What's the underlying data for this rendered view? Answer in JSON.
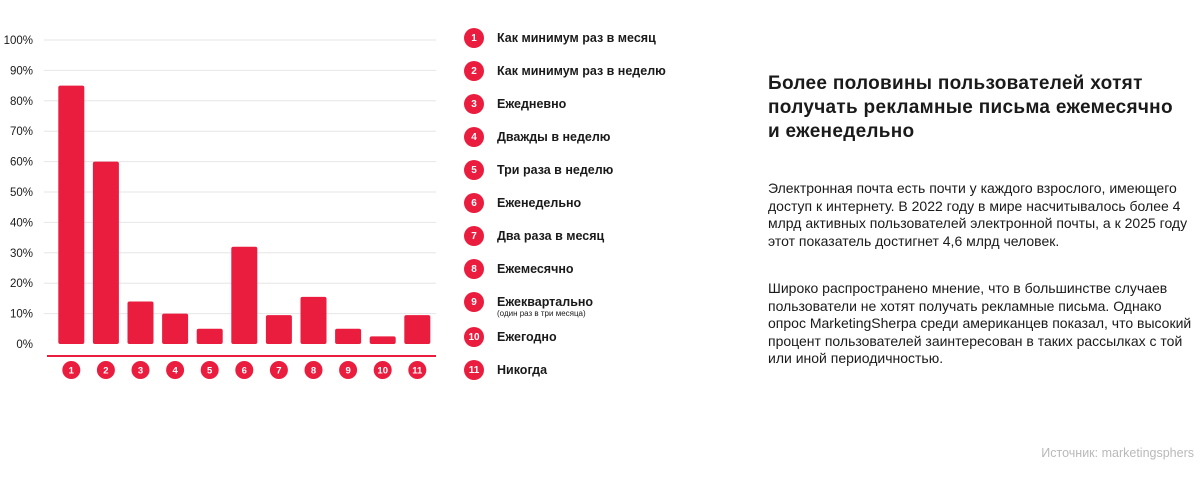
{
  "chart_data": {
    "type": "bar",
    "categories": [
      "1",
      "2",
      "3",
      "4",
      "5",
      "6",
      "7",
      "8",
      "9",
      "10",
      "11"
    ],
    "values": [
      85,
      60,
      14,
      10,
      5,
      32,
      9.5,
      15.5,
      5,
      2.5,
      9.5
    ],
    "ylim": [
      0,
      100
    ],
    "yticks": [
      "0%",
      "10%",
      "20%",
      "30%",
      "40%",
      "50%",
      "60%",
      "70%",
      "80%",
      "90%",
      "100%"
    ],
    "grid": true
  },
  "colors": {
    "accent": "#ea1d3f",
    "grid": "#e6e6e6",
    "source": "#b9b9b9"
  },
  "legend": [
    {
      "num": "1",
      "label": "Как минимум раз в месяц"
    },
    {
      "num": "2",
      "label": "Как минимум раз в неделю"
    },
    {
      "num": "3",
      "label": "Ежедневно"
    },
    {
      "num": "4",
      "label": "Дважды в неделю"
    },
    {
      "num": "5",
      "label": "Три раза в неделю"
    },
    {
      "num": "6",
      "label": "Еженедельно"
    },
    {
      "num": "7",
      "label": "Два раза в месяц"
    },
    {
      "num": "8",
      "label": "Ежемесячно"
    },
    {
      "num": "9",
      "label": "Ежеквартально",
      "note": "(один раз в три месяца)"
    },
    {
      "num": "10",
      "label": "Ежегодно"
    },
    {
      "num": "11",
      "label": "Никогда"
    }
  ],
  "headline": "Более половины пользователей хотят получать рекламные письма ежемесячно и еженедельно",
  "paragraphs": [
    "Электронная почта есть почти у каждого взрослого, имеющего доступ к интернету. В 2022 году в мире насчитывалось более 4 млрд активных пользователей электронной почты, а к 2025 году этот показатель достигнет 4,6 млрд человек.",
    "Широко распространено мнение, что в большинстве случаев пользователи не хотят получать рекламные письма. Однако опрос MarketingSherpa среди американцев показал, что высокий процент пользователей заинтересован в таких рассылках с той или иной периодичностью."
  ],
  "source": "Источник: marketingsphers"
}
